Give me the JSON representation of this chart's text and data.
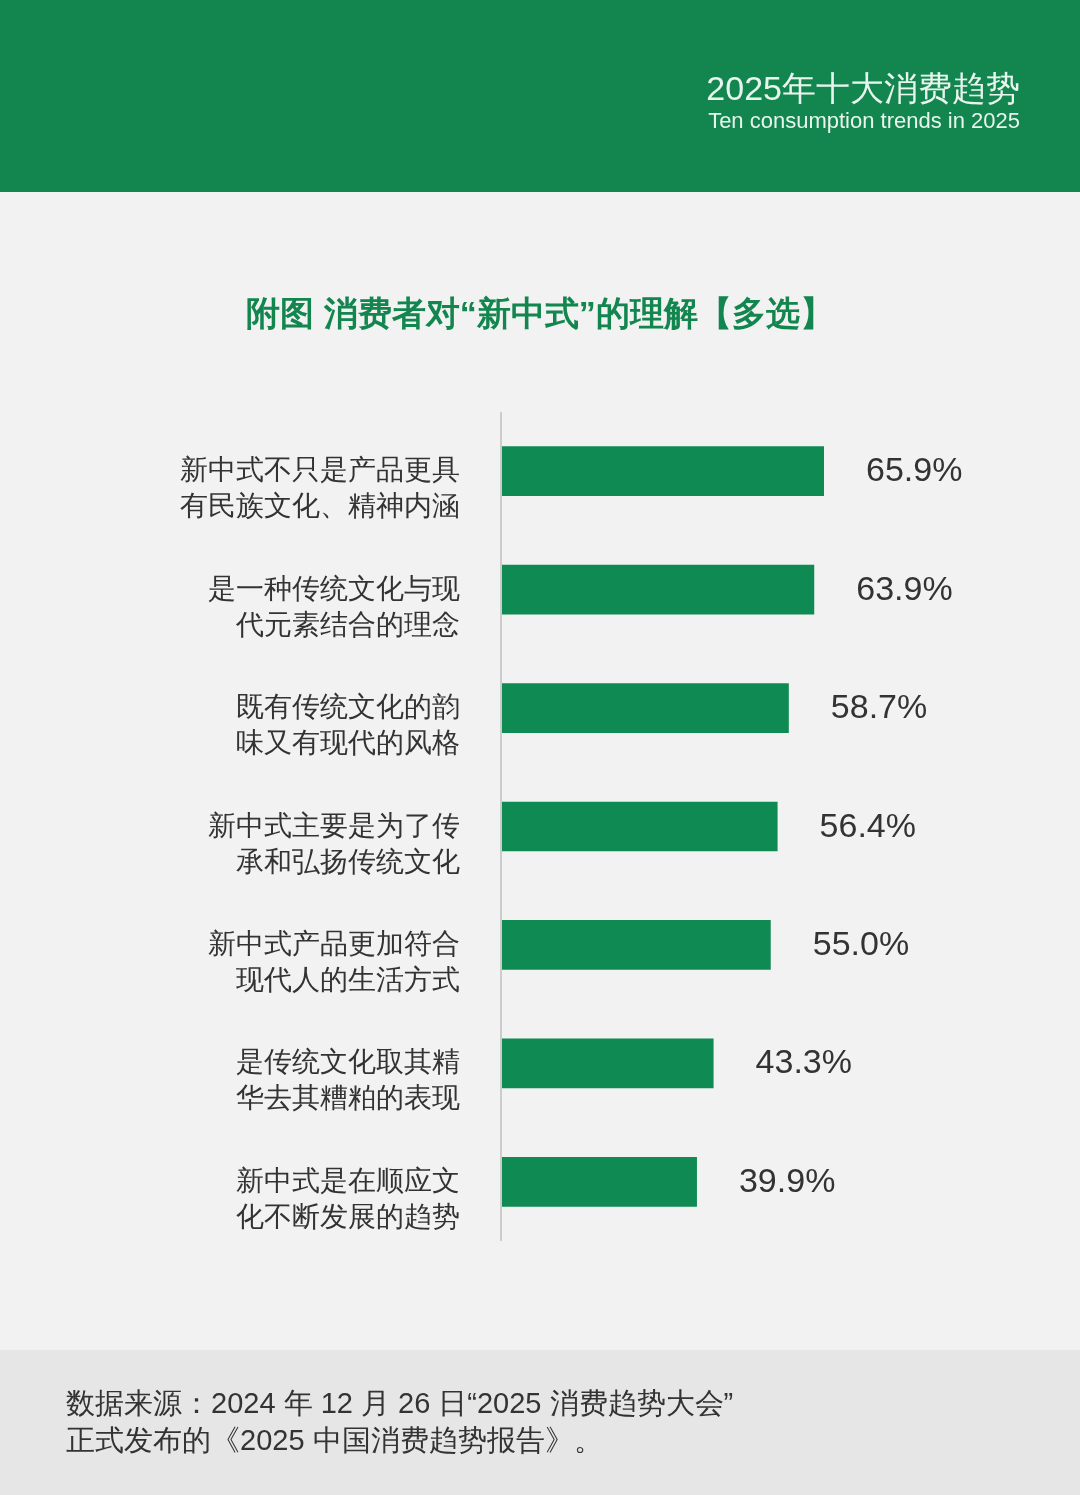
{
  "chart_data": {
    "type": "bar",
    "orientation": "horizontal",
    "title": "附图  消费者对“新中式”的理解【多选】",
    "categories": [
      "新中式不只是产品更具有民族文化、精神内涵",
      "是一种传统文化与现代元素结合的理念",
      "既有传统文化的韵味又有现代的风格",
      "新中式主要是为了传承和弘扬传统文化",
      "新中式产品更加符合现代人的生活方式",
      "是传统文化取其精华去其糟粕的表现",
      "新中式是在顺应文化不断发展的趋势"
    ],
    "values": [
      65.9,
      63.9,
      58.7,
      56.4,
      55.0,
      43.3,
      39.9
    ],
    "value_labels": [
      "65.9%",
      "63.9%",
      "58.7%",
      "56.4%",
      "55.0%",
      "43.3%",
      "39.9%"
    ],
    "color": "#0f8a53",
    "annotations": [
      "2025年十大消费趋势",
      "Ten consumption trends in 2025",
      "数据来源：2024 年 12 月 26 日“2025 消费趋势大会”正式发布的《2025 中国消费趋势报告》。"
    ]
  }
}
